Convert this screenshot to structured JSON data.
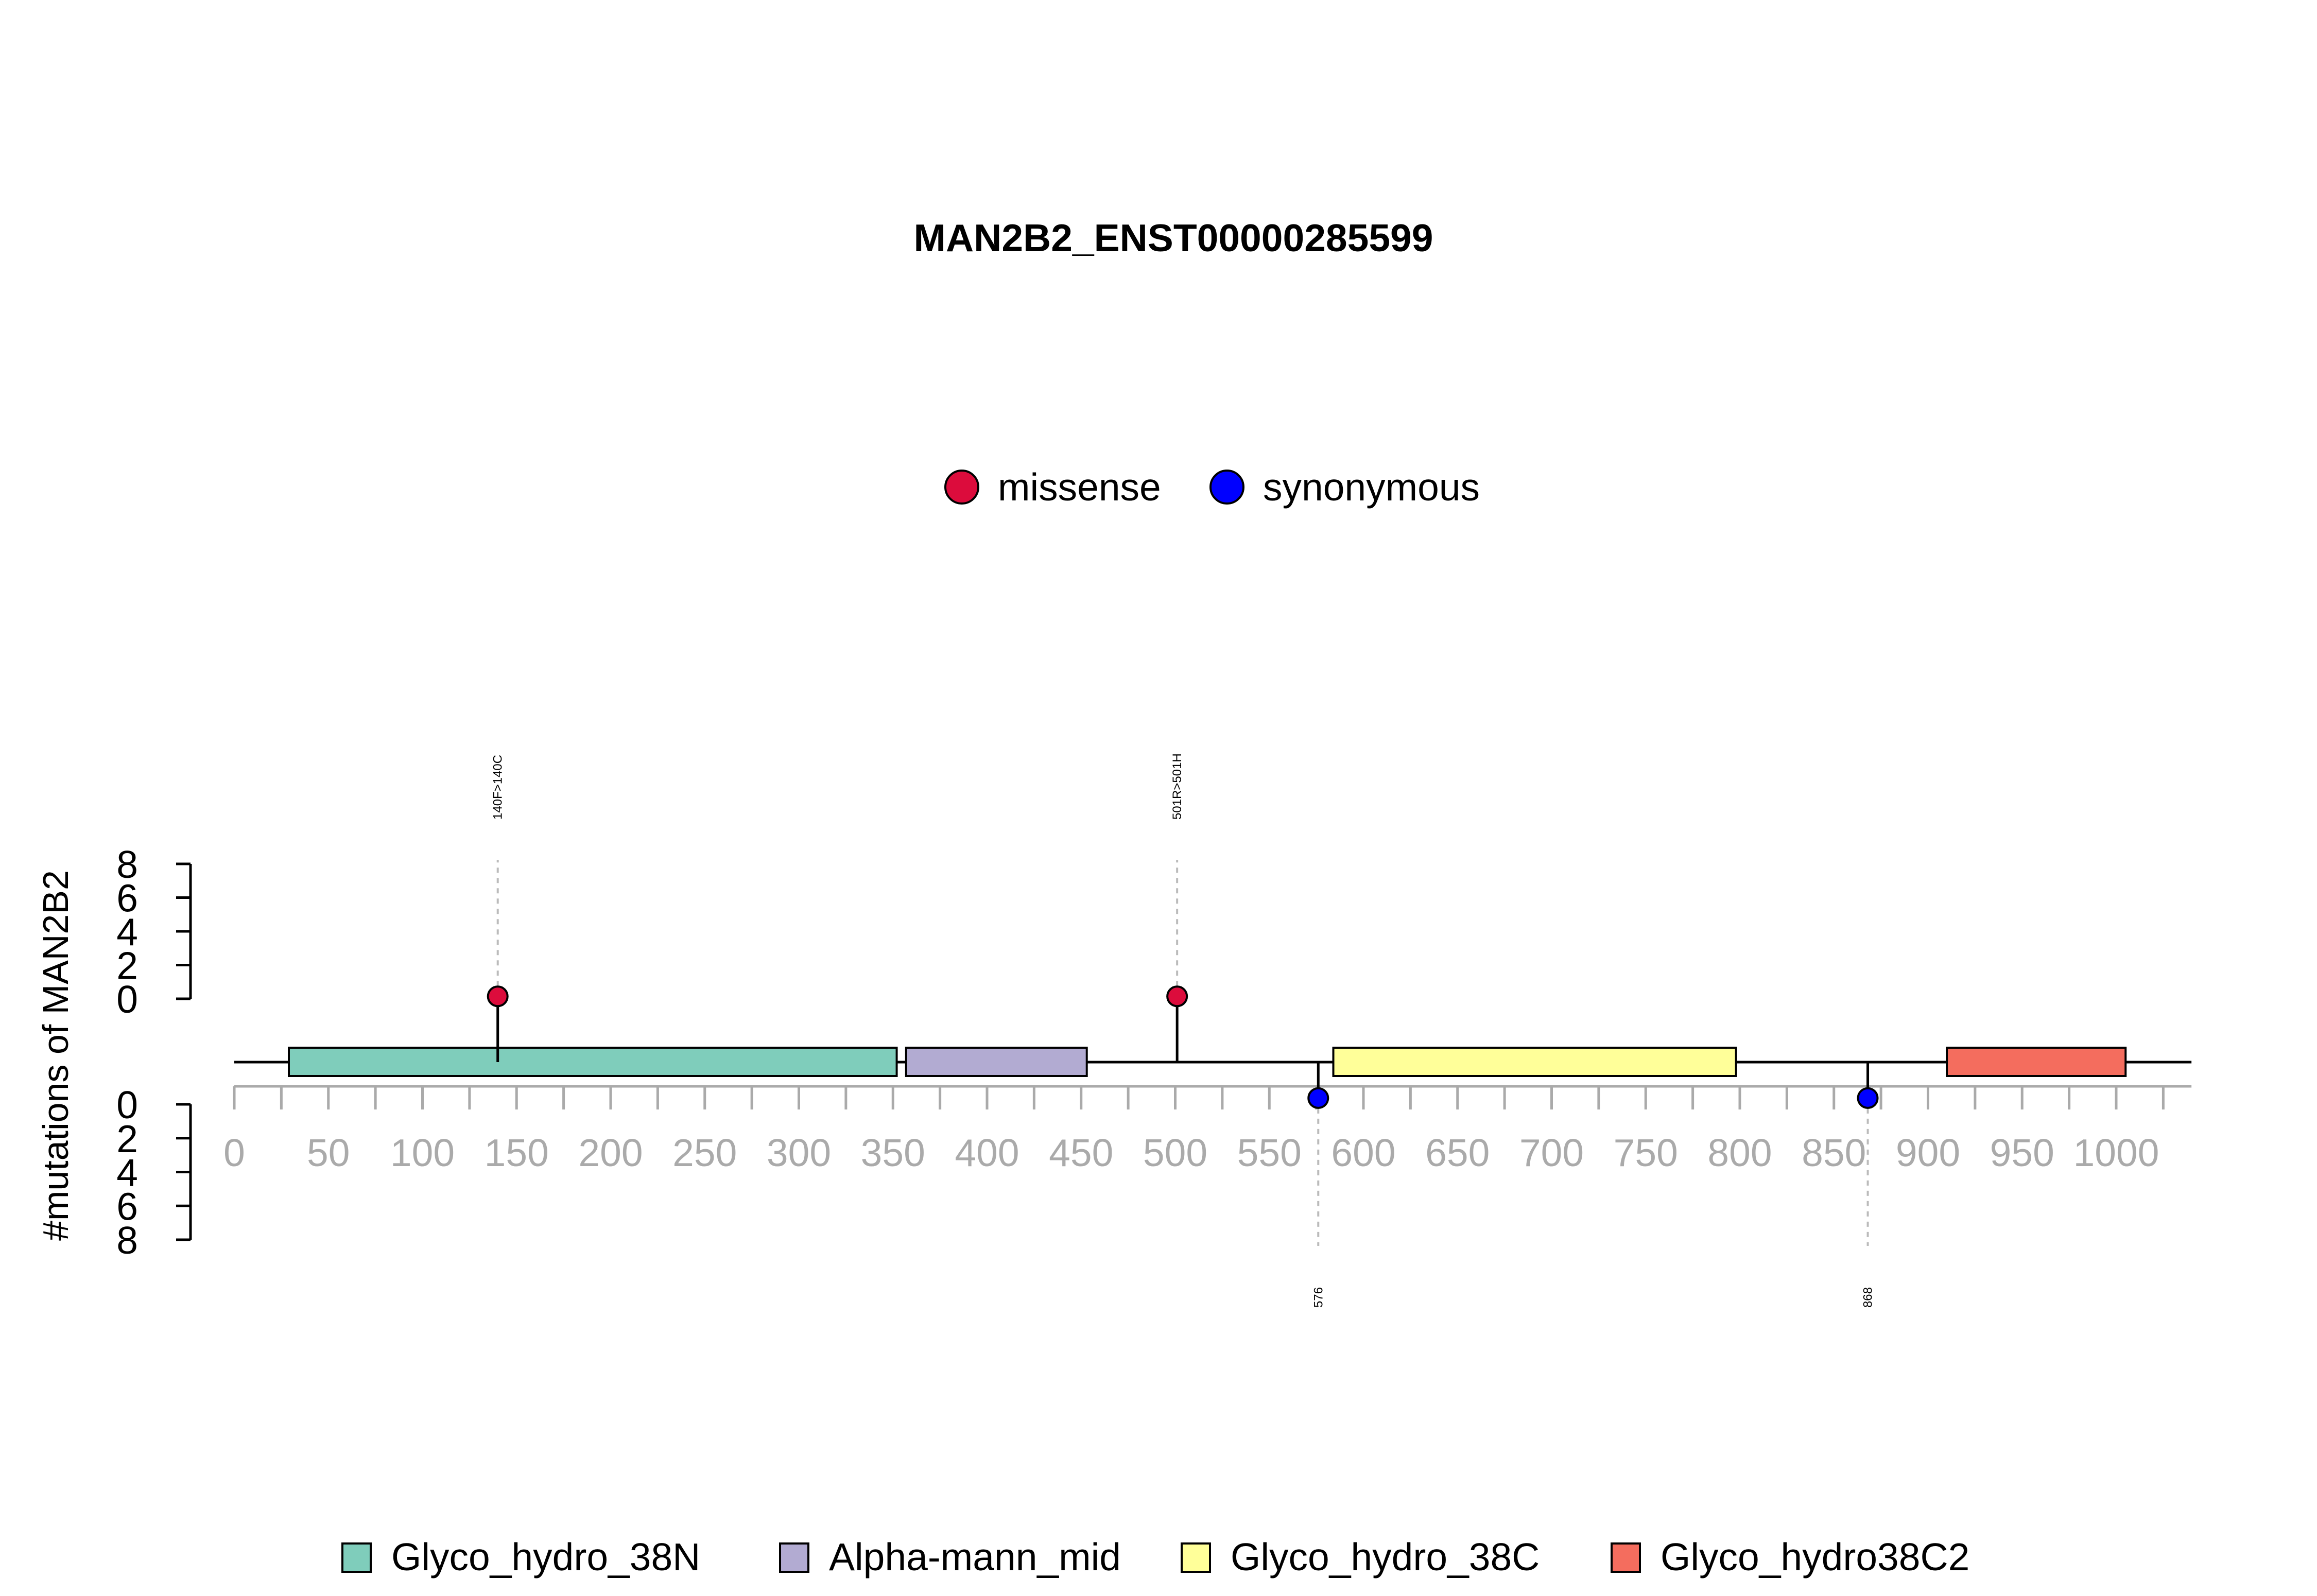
{
  "chart_data": {
    "type": "lollipop",
    "title": "MAN2B2_ENST00000285599",
    "ylabel": "#mutations of MAN2B2",
    "protein_length": 1040,
    "x_ticks": [
      0,
      50,
      100,
      150,
      200,
      250,
      300,
      350,
      400,
      450,
      500,
      550,
      600,
      650,
      700,
      750,
      800,
      850,
      900,
      950,
      1000
    ],
    "x_tick_labels": [
      "0",
      "50",
      "100",
      "150",
      "200",
      "250",
      "300",
      "350",
      "400",
      "450",
      "500",
      "550",
      "600",
      "650",
      "700",
      "750",
      "800",
      "850",
      "900",
      "950",
      "1000"
    ],
    "y_ticks": [
      0,
      2,
      4,
      6,
      8
    ],
    "y_tick_labels": [
      "0",
      "2",
      "4",
      "6",
      "8"
    ],
    "ylim": [
      0,
      8
    ],
    "mutation_legend": [
      {
        "name": "missense",
        "color": "#dc0c3c"
      },
      {
        "name": "synonymous",
        "color": "#0000ff"
      }
    ],
    "domains": [
      {
        "name": "Glyco_hydro_38N",
        "start": 29,
        "end": 352,
        "color": "#7fcdbb"
      },
      {
        "name": "Alpha-mann_mid",
        "start": 357,
        "end": 453,
        "color": "#b2abd2"
      },
      {
        "name": "Glyco_hydro_38C",
        "start": 584,
        "end": 798,
        "color": "#ffff99"
      },
      {
        "name": "Glyco_hydro38C2",
        "start": 910,
        "end": 1005,
        "color": "#f46d5e"
      }
    ],
    "mutations": [
      {
        "position": 140,
        "count": 1,
        "type": "missense",
        "label": "140F>140C",
        "side": "top"
      },
      {
        "position": 501,
        "count": 1,
        "type": "missense",
        "label": "501R>501H",
        "side": "top"
      },
      {
        "position": 576,
        "count": 1,
        "type": "synonymous",
        "label": "576",
        "side": "bottom"
      },
      {
        "position": 868,
        "count": 1,
        "type": "synonymous",
        "label": "868",
        "side": "bottom"
      }
    ]
  }
}
